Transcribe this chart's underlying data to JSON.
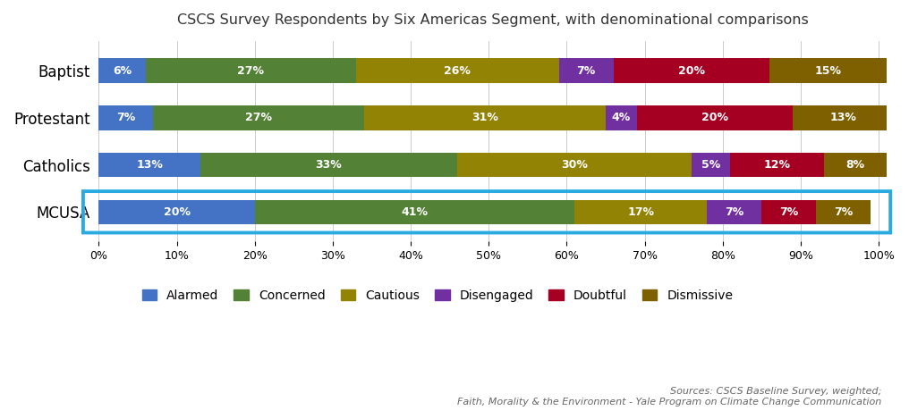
{
  "title": "CSCS Survey Respondents by Six Americas Segment, with denominational comparisons",
  "categories": [
    "Baptist",
    "Protestant",
    "Catholics",
    "MCUSA"
  ],
  "segments": [
    "Alarmed",
    "Concerned",
    "Cautious",
    "Disengaged",
    "Doubtful",
    "Dismissive"
  ],
  "colors": [
    "#4472C4",
    "#538135",
    "#938305",
    "#7030A0",
    "#A50021",
    "#7F6000"
  ],
  "data": {
    "Baptist": [
      6,
      27,
      26,
      7,
      20,
      15
    ],
    "Protestant": [
      7,
      27,
      31,
      4,
      20,
      13
    ],
    "Catholics": [
      13,
      33,
      30,
      5,
      12,
      8
    ],
    "MCUSA": [
      20,
      41,
      17,
      7,
      7,
      7
    ]
  },
  "highlight_row": "MCUSA",
  "highlight_color": "#29ABE2",
  "source_text": "Sources: CSCS Baseline Survey, weighted;\nFaith, Morality & the Environment - Yale Program on Climate Change Communication",
  "background_color": "#FFFFFF",
  "bar_height": 0.52,
  "title_fontsize": 11.5,
  "label_fontsize": 9,
  "tick_fontsize": 9,
  "legend_fontsize": 10,
  "ytick_fontsize": 12
}
